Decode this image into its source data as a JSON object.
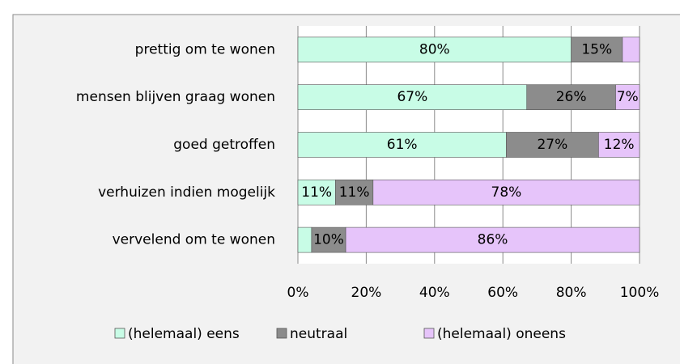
{
  "chart_data": {
    "type": "stacked-bar-horizontal",
    "categories": [
      "prettig om te wonen",
      "mensen blijven graag wonen",
      "goed getroffen",
      "verhuizen indien mogelijk",
      "vervelend om te wonen"
    ],
    "series": [
      {
        "name": "(helemaal) eens",
        "color": "#c8fce6",
        "values": [
          80,
          67,
          61,
          11,
          4
        ],
        "value_labels": [
          "80%",
          "67%",
          "61%",
          "11%",
          null
        ]
      },
      {
        "name": "neutraal",
        "color": "#8c8c8c",
        "values": [
          15,
          26,
          27,
          11,
          10
        ],
        "value_labels": [
          "15%",
          "26%",
          "27%",
          "11%",
          "10%"
        ]
      },
      {
        "name": "(helemaal) oneens",
        "color": "#e6c4fa",
        "values": [
          5,
          7,
          12,
          78,
          86
        ],
        "value_labels": [
          null,
          "7%",
          "12%",
          "78%",
          "86%"
        ]
      }
    ],
    "xlim": [
      0,
      100
    ],
    "xticks": [
      {
        "value": 0,
        "label": "0%"
      },
      {
        "value": 20,
        "label": "20%"
      },
      {
        "value": 40,
        "label": "40%"
      },
      {
        "value": 60,
        "label": "60%"
      },
      {
        "value": 80,
        "label": "80%"
      },
      {
        "value": 100,
        "label": "100%"
      }
    ],
    "grid": true,
    "legend": "bottom"
  }
}
